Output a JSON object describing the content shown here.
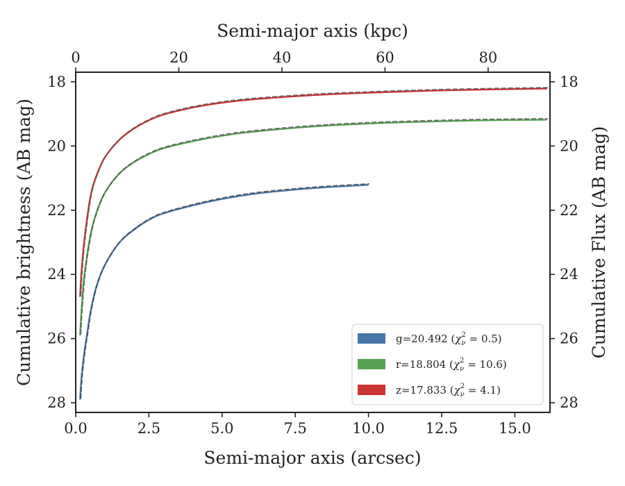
{
  "chart_data": {
    "type": "line",
    "x_bottom": {
      "label": "Semi-major axis (arcsec)",
      "range": [
        0,
        16.2
      ],
      "ticks": [
        0,
        2.5,
        5,
        7.5,
        10,
        12.5,
        15
      ],
      "tick_labels": [
        "0.0",
        "2.5",
        "5.0",
        "7.5",
        "10.0",
        "12.5",
        "15.0"
      ]
    },
    "x_top": {
      "label": "Semi-major axis (kpc)",
      "range": [
        0,
        92
      ],
      "ticks": [
        0,
        20,
        40,
        60,
        80
      ],
      "tick_labels": [
        "0",
        "20",
        "40",
        "60",
        "80"
      ]
    },
    "y_left": {
      "label": "Cumulative brightness (AB mag)",
      "range": [
        28.3,
        17.7
      ],
      "inverted": true,
      "ticks": [
        18,
        20,
        22,
        24,
        26,
        28
      ],
      "tick_labels": [
        "18",
        "20",
        "22",
        "24",
        "26",
        "28"
      ]
    },
    "y_right": {
      "label": "Cumulative Flux (AB mag)",
      "ticks": [
        18,
        20,
        22,
        24,
        26,
        28
      ],
      "tick_labels": [
        "18",
        "20",
        "22",
        "24",
        "26",
        "28"
      ]
    },
    "legend_position": "lower-right",
    "series": [
      {
        "legend_prefix": "g=20.492 (",
        "chi_value": "0.5",
        "color": "#4677a8",
        "model_color": "#444444",
        "x": [
          0.15,
          0.2,
          0.3,
          0.4,
          0.5,
          0.7,
          1.0,
          1.5,
          2.0,
          2.5,
          3.0,
          4.0,
          5.0,
          6.0,
          7.0,
          8.0,
          9.0,
          10.0
        ],
        "y": [
          27.9,
          27.2,
          26.4,
          25.8,
          25.2,
          24.4,
          23.7,
          23.0,
          22.6,
          22.3,
          22.1,
          21.85,
          21.65,
          21.5,
          21.4,
          21.32,
          21.26,
          21.21
        ]
      },
      {
        "legend_prefix": "r=18.804 (",
        "chi_value": "10.6",
        "color": "#58a253",
        "model_color": "#555555",
        "x": [
          0.15,
          0.2,
          0.3,
          0.5,
          0.7,
          1.0,
          1.5,
          2.0,
          2.5,
          3.0,
          4.0,
          5.0,
          6.0,
          8.0,
          10.0,
          12.0,
          14.0,
          16.1
        ],
        "y": [
          25.9,
          25.1,
          24.0,
          22.8,
          22.1,
          21.45,
          20.85,
          20.5,
          20.25,
          20.07,
          19.85,
          19.68,
          19.56,
          19.4,
          19.3,
          19.24,
          19.2,
          19.18
        ]
      },
      {
        "legend_prefix": "z=17.833 (",
        "chi_value": "4.1",
        "color": "#cc3333",
        "model_color": "#555555",
        "x": [
          0.15,
          0.2,
          0.3,
          0.5,
          0.7,
          1.0,
          1.5,
          2.0,
          2.5,
          3.0,
          4.0,
          5.0,
          6.0,
          8.0,
          10.0,
          12.0,
          14.0,
          16.1
        ],
        "y": [
          24.7,
          23.9,
          22.9,
          21.6,
          20.95,
          20.35,
          19.8,
          19.45,
          19.2,
          19.02,
          18.8,
          18.65,
          18.55,
          18.42,
          18.34,
          18.28,
          18.24,
          18.21
        ]
      }
    ]
  }
}
